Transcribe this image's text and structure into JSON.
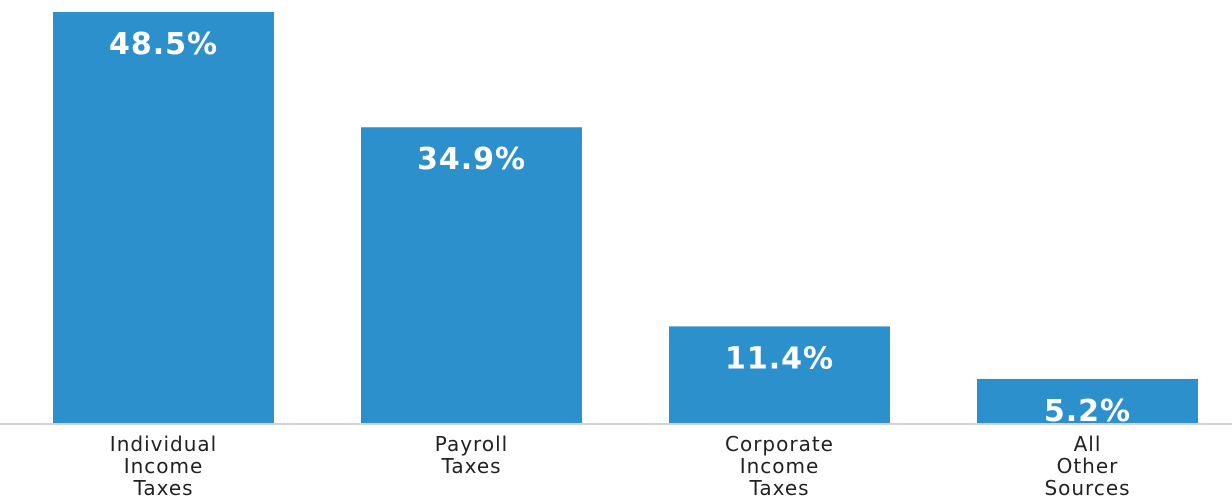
{
  "chart_data": {
    "type": "bar",
    "title": "",
    "xlabel": "",
    "ylabel": "",
    "categories": [
      [
        "Individual",
        "Income",
        "Taxes"
      ],
      [
        "Payroll",
        "Taxes"
      ],
      [
        "Corporate",
        "Income",
        "Taxes"
      ],
      [
        "All",
        "Other",
        "Sources"
      ]
    ],
    "values": [
      48.5,
      34.9,
      11.4,
      5.2
    ],
    "data_labels": [
      "48.5%",
      "34.9%",
      "11.4%",
      "5.2%"
    ],
    "ylim": [
      0,
      48.5
    ],
    "grid": false,
    "legend": "none",
    "bar_color": "#2b90cc",
    "baseline_color": "#cfd3d6",
    "label_color": "#222222",
    "value_label_color": "#ffffff"
  }
}
